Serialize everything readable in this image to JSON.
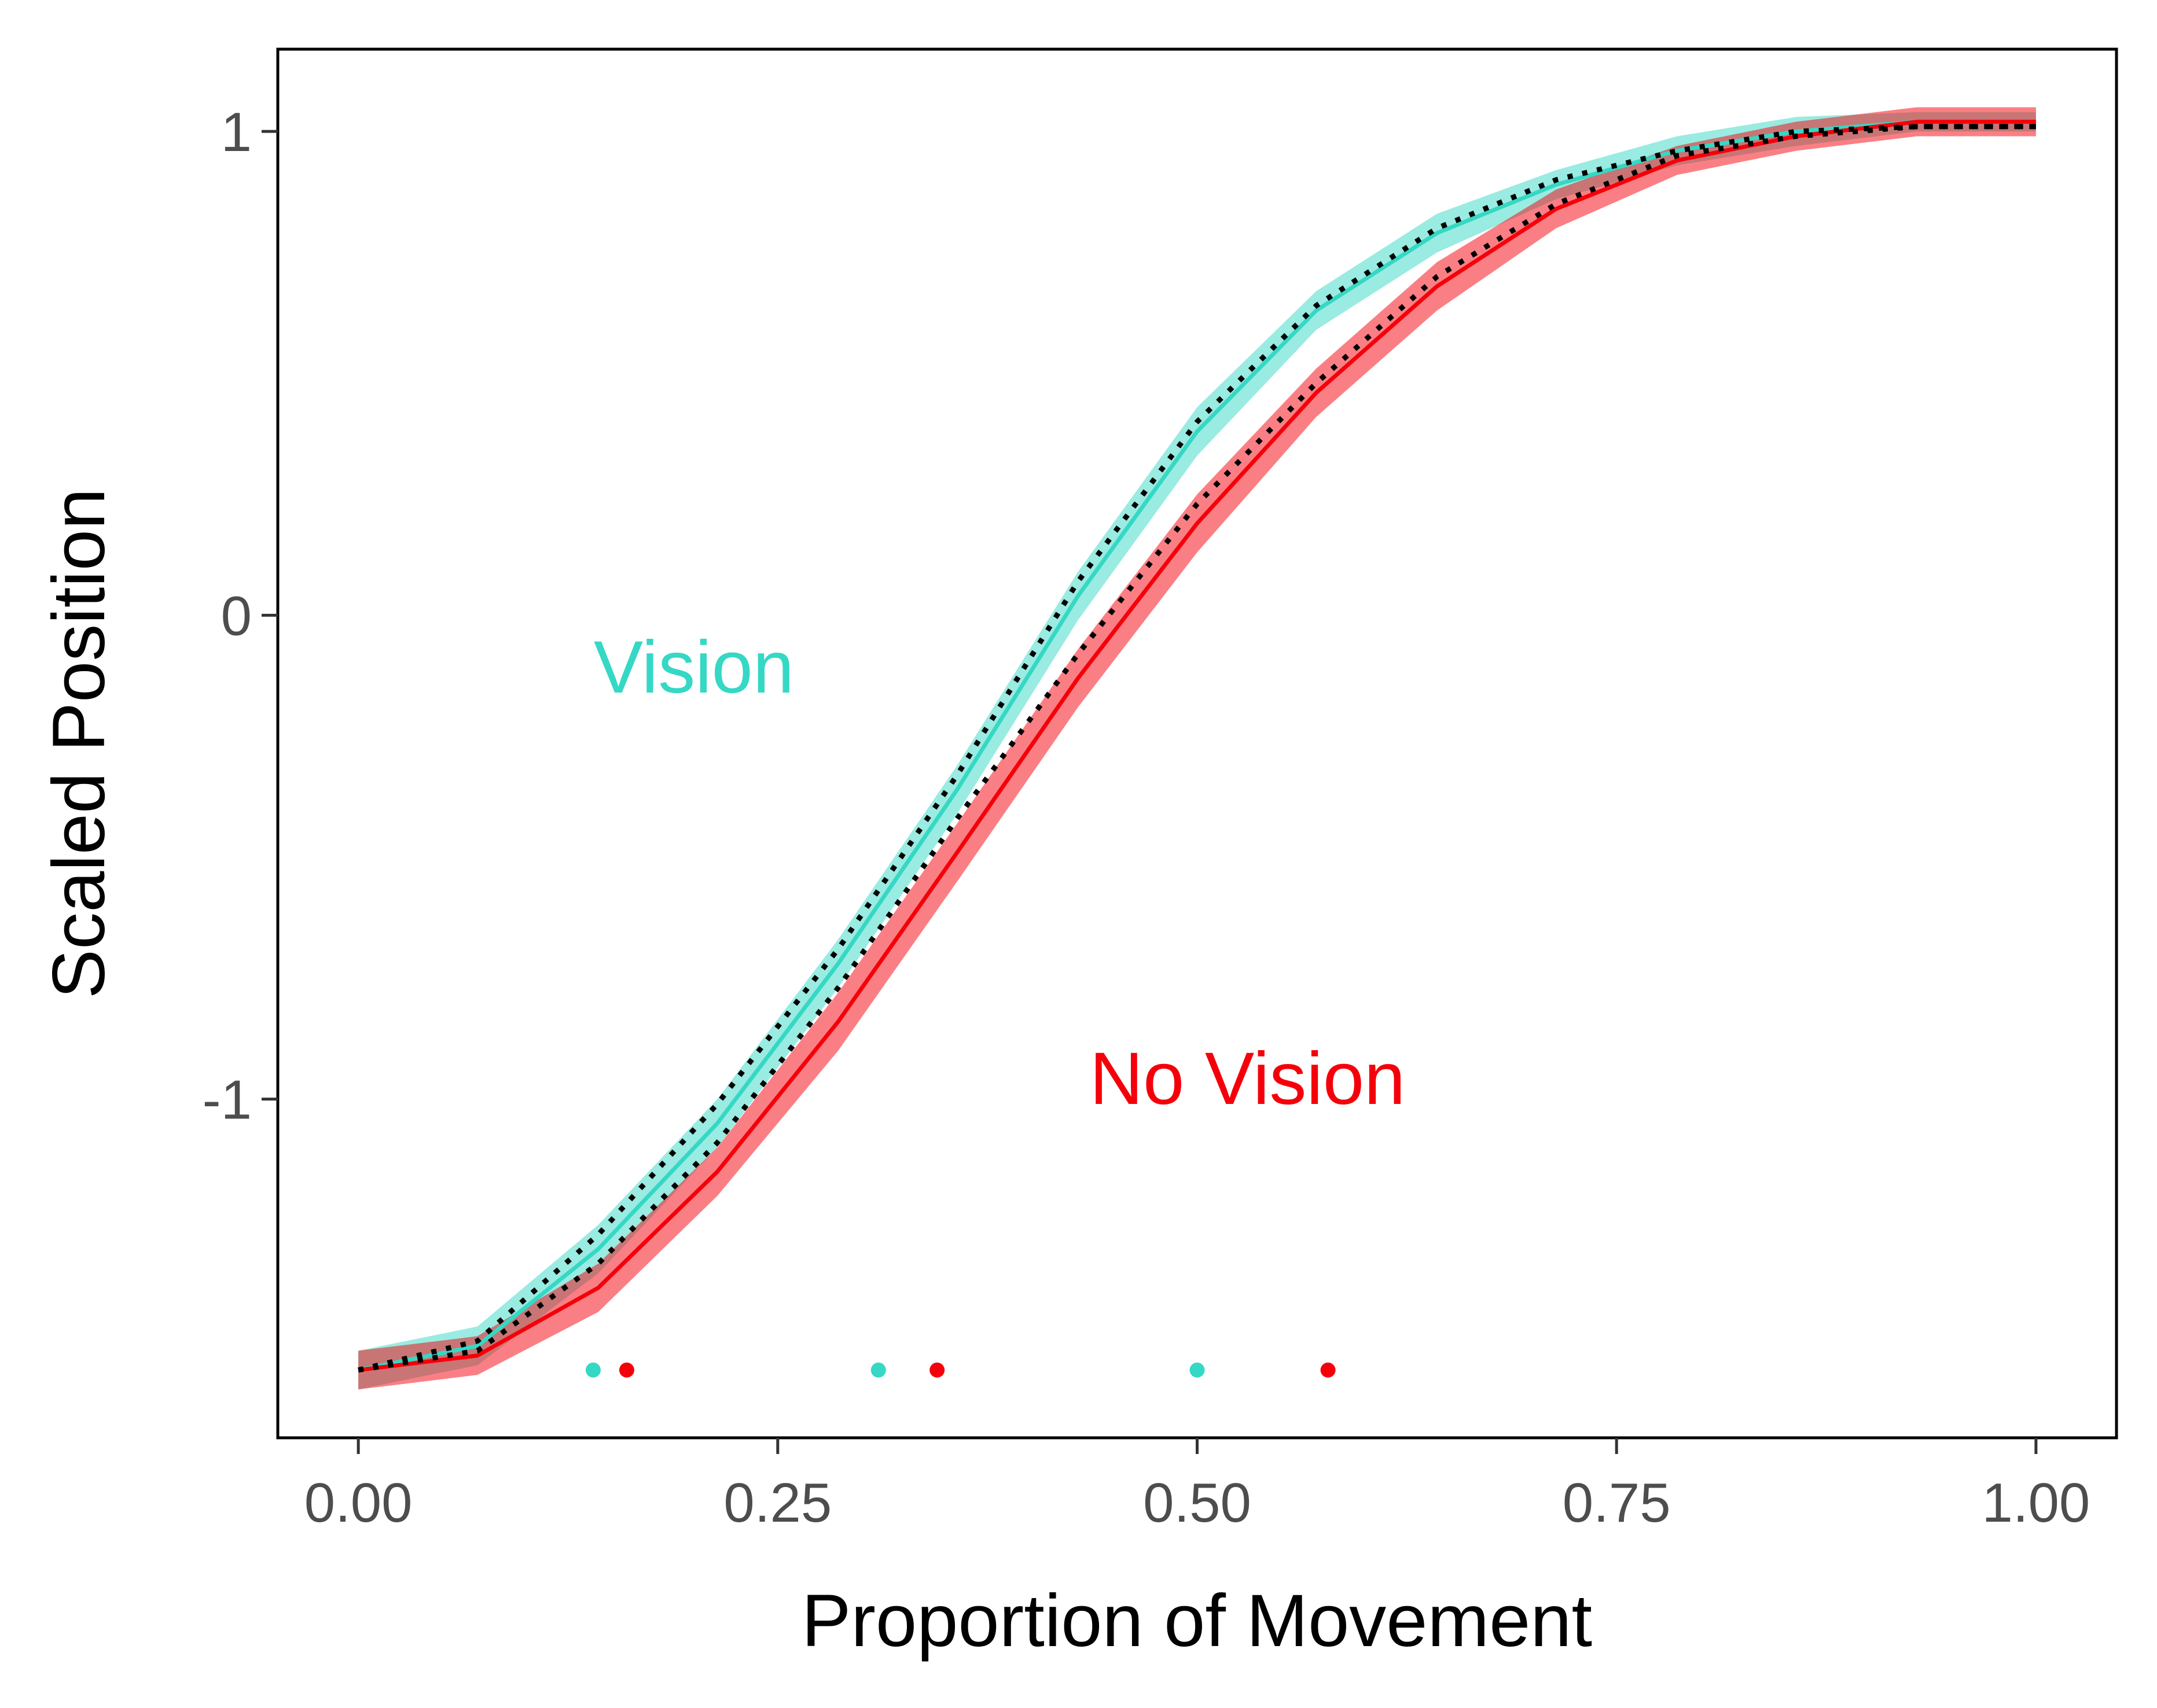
{
  "chart_data": {
    "type": "line",
    "title": "",
    "xlabel": "Proportion of Movement",
    "ylabel": "Scaled Position",
    "xlim": [
      -0.048,
      1.048
    ],
    "ylim": [
      -1.7,
      1.17
    ],
    "x_ticks": [
      0.0,
      0.25,
      0.5,
      0.75,
      1.0
    ],
    "x_tick_labels": [
      "0.00",
      "0.25",
      "0.50",
      "0.75",
      "1.00"
    ],
    "y_ticks": [
      -1,
      0,
      1
    ],
    "y_tick_labels": [
      "-1",
      "0",
      "1"
    ],
    "grid": false,
    "legend": "none",
    "series": [
      {
        "name": "Vision",
        "color": "#35d8c4",
        "band_color": "#35d8c4",
        "style": "solid",
        "x": [
          0.0,
          0.071,
          0.143,
          0.214,
          0.286,
          0.357,
          0.429,
          0.5,
          0.571,
          0.643,
          0.714,
          0.786,
          0.857,
          0.929,
          1.0
        ],
        "y": [
          -1.56,
          -1.51,
          -1.31,
          -1.05,
          -0.72,
          -0.36,
          0.04,
          0.38,
          0.63,
          0.79,
          0.89,
          0.96,
          1.0,
          1.02,
          1.02
        ],
        "band": [
          0.04,
          0.04,
          0.05,
          0.05,
          0.05,
          0.05,
          0.05,
          0.05,
          0.04,
          0.04,
          0.03,
          0.03,
          0.03,
          0.02,
          0.02
        ]
      },
      {
        "name": "No Vision",
        "color": "#f5000a",
        "band_color": "#f5000a",
        "style": "solid",
        "x": [
          0.0,
          0.071,
          0.143,
          0.214,
          0.286,
          0.357,
          0.429,
          0.5,
          0.571,
          0.643,
          0.714,
          0.786,
          0.857,
          0.929,
          1.0
        ],
        "y": [
          -1.56,
          -1.53,
          -1.39,
          -1.15,
          -0.84,
          -0.49,
          -0.13,
          0.19,
          0.46,
          0.68,
          0.84,
          0.94,
          0.99,
          1.02,
          1.02
        ],
        "band": [
          0.04,
          0.04,
          0.05,
          0.05,
          0.06,
          0.06,
          0.06,
          0.06,
          0.05,
          0.05,
          0.04,
          0.03,
          0.03,
          0.03,
          0.03
        ]
      },
      {
        "name": "",
        "color": "#000000",
        "style": "dotted",
        "x": [
          0.0,
          0.071,
          0.143,
          0.214,
          0.286,
          0.357,
          0.429,
          0.5,
          0.571,
          0.643,
          0.714,
          0.786,
          0.857,
          0.929,
          1.0
        ],
        "y": [
          -1.56,
          -1.5,
          -1.28,
          -1.01,
          -0.69,
          -0.33,
          0.07,
          0.4,
          0.64,
          0.8,
          0.9,
          0.96,
          1.0,
          1.01,
          1.01
        ]
      },
      {
        "name": "",
        "color": "#000000",
        "style": "dotted",
        "x": [
          0.0,
          0.071,
          0.143,
          0.214,
          0.286,
          0.357,
          0.429,
          0.5,
          0.571,
          0.643,
          0.714,
          0.786,
          0.857,
          0.929,
          1.0
        ],
        "y": [
          -1.56,
          -1.52,
          -1.34,
          -1.09,
          -0.77,
          -0.42,
          -0.08,
          0.23,
          0.48,
          0.7,
          0.85,
          0.95,
          0.99,
          1.01,
          1.01
        ]
      }
    ],
    "points": [
      {
        "x": 0.14,
        "y": -1.56,
        "color": "#35d8c4"
      },
      {
        "x": 0.16,
        "y": -1.56,
        "color": "#f5000a"
      },
      {
        "x": 0.31,
        "y": -1.56,
        "color": "#35d8c4"
      },
      {
        "x": 0.345,
        "y": -1.56,
        "color": "#f5000a"
      },
      {
        "x": 0.5,
        "y": -1.56,
        "color": "#35d8c4"
      },
      {
        "x": 0.578,
        "y": -1.56,
        "color": "#f5000a"
      }
    ],
    "annotations": [
      {
        "text": "Vision",
        "x": 0.2,
        "y": -0.16,
        "color": "#35d8c4"
      },
      {
        "text": "No Vision",
        "x": 0.53,
        "y": -1.01,
        "color": "#f5000a"
      }
    ]
  }
}
